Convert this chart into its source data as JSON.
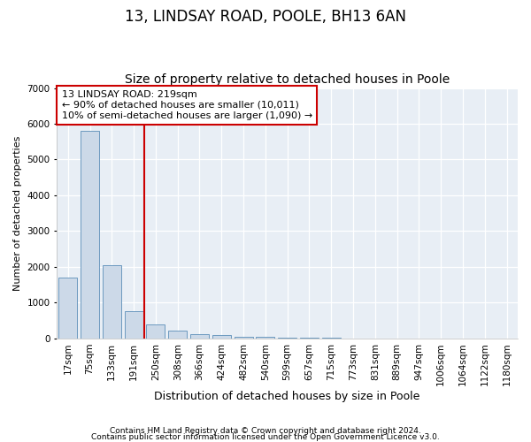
{
  "title1": "13, LINDSAY ROAD, POOLE, BH13 6AN",
  "title2": "Size of property relative to detached houses in Poole",
  "xlabel": "Distribution of detached houses by size in Poole",
  "ylabel": "Number of detached properties",
  "footer1": "Contains HM Land Registry data © Crown copyright and database right 2024.",
  "footer2": "Contains public sector information licensed under the Open Government Licence v3.0.",
  "annotation_line1": "13 LINDSAY ROAD: 219sqm",
  "annotation_line2": "← 90% of detached houses are smaller (10,011)",
  "annotation_line3": "10% of semi-detached houses are larger (1,090) →",
  "bin_labels": [
    "17sqm",
    "75sqm",
    "133sqm",
    "191sqm",
    "250sqm",
    "308sqm",
    "366sqm",
    "424sqm",
    "482sqm",
    "540sqm",
    "599sqm",
    "657sqm",
    "715sqm",
    "773sqm",
    "831sqm",
    "889sqm",
    "947sqm",
    "1006sqm",
    "1064sqm",
    "1122sqm",
    "1180sqm"
  ],
  "bar_values": [
    1700,
    5800,
    2050,
    750,
    390,
    230,
    130,
    90,
    55,
    40,
    25,
    18,
    12,
    8,
    6,
    5,
    4,
    3,
    2,
    2,
    2
  ],
  "bar_color": "#ccd9e8",
  "bar_edge_color": "#5b8db8",
  "vline_color": "#cc0000",
  "annotation_box_edge_color": "#cc0000",
  "ylim": [
    0,
    7000
  ],
  "yticks": [
    0,
    1000,
    2000,
    3000,
    4000,
    5000,
    6000,
    7000
  ],
  "plot_bg_color": "#e8eef5",
  "grid_color": "#ffffff",
  "title1_fontsize": 12,
  "title2_fontsize": 10,
  "xlabel_fontsize": 9,
  "ylabel_fontsize": 8,
  "annotation_fontsize": 8,
  "tick_fontsize": 7.5,
  "footer_fontsize": 6.5
}
